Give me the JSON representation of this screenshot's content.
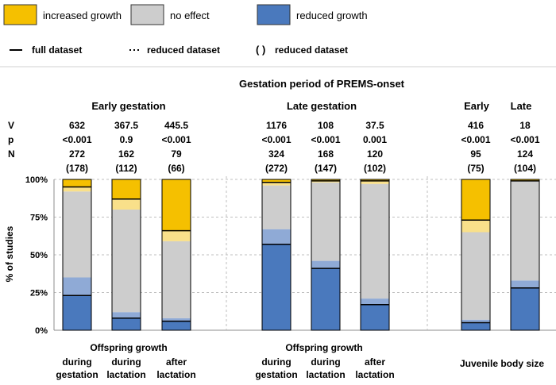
{
  "legend": {
    "colors": [
      {
        "label": "increased growth",
        "color": "#F5C000"
      },
      {
        "label": "no effect",
        "color": "#CDCDCD"
      },
      {
        "label": "reduced growth",
        "color": "#4A79BD"
      }
    ],
    "lines": [
      {
        "symbol": "—",
        "label": "full dataset"
      },
      {
        "symbol": "···",
        "label": "reduced dataset"
      },
      {
        "symbol": "( )",
        "label": "reduced dataset"
      }
    ]
  },
  "stat_labels": [
    "V",
    "p",
    "N"
  ],
  "colors": {
    "increased": "#F5C000",
    "increased_light": "#F9E08A",
    "noeffect": "#CDCDCD",
    "noeffect_light": "#E2E2E2",
    "reduced": "#4A79BD",
    "reduced_light": "#8FAAD6",
    "grid": "#BFBFBF"
  },
  "chart_data": {
    "type": "bar",
    "title": "Gestation period of PREMS-onset",
    "ylabel": "% of studies",
    "ylim": [
      0,
      100
    ],
    "yticks": [
      "0%",
      "25%",
      "50%",
      "75%",
      "100%"
    ],
    "grid": true,
    "groups": [
      {
        "label": "Early gestation",
        "sublabel": "Offspring growth",
        "categories": [
          "during\ngestation",
          "during\nlactation",
          "after\nlactation"
        ]
      },
      {
        "label": "Late gestation",
        "sublabel": "Offspring growth",
        "categories": [
          "during\ngestation",
          "during\nlactation",
          "after\nlactation"
        ]
      },
      {
        "label": "Early",
        "label2": "Late",
        "sublabel": "Juvenile body size",
        "categories": [
          "",
          ""
        ]
      }
    ],
    "bars": [
      {
        "group": 0,
        "V": "632",
        "p": "<0.001",
        "N": "272",
        "N_reduced": "(178)",
        "reduced_full": 23,
        "reduced_sub": 35,
        "increased_full": 5,
        "increased_sub": 8
      },
      {
        "group": 0,
        "V": "367.5",
        "p": "0.9",
        "N": "162",
        "N_reduced": "(112)",
        "reduced_full": 8,
        "reduced_sub": 12,
        "increased_full": 13,
        "increased_sub": 20
      },
      {
        "group": 0,
        "V": "445.5",
        "p": "<0.001",
        "N": "79",
        "N_reduced": "(66)",
        "reduced_full": 6,
        "reduced_sub": 8,
        "increased_full": 34,
        "increased_sub": 41
      },
      {
        "group": 1,
        "V": "1176",
        "p": "<0.001",
        "N": "324",
        "N_reduced": "(272)",
        "reduced_full": 57,
        "reduced_sub": 67,
        "increased_full": 2,
        "increased_sub": 4
      },
      {
        "group": 1,
        "V": "108",
        "p": "<0.001",
        "N": "168",
        "N_reduced": "(147)",
        "reduced_full": 41,
        "reduced_sub": 46,
        "increased_full": 1,
        "increased_sub": 2
      },
      {
        "group": 1,
        "V": "37.5",
        "p": "0.001",
        "N": "120",
        "N_reduced": "(102)",
        "reduced_full": 17,
        "reduced_sub": 21,
        "increased_full": 1,
        "increased_sub": 3
      },
      {
        "group": 2,
        "V": "416",
        "p": "<0.001",
        "N": "95",
        "N_reduced": "(75)",
        "reduced_full": 5,
        "reduced_sub": 7,
        "increased_full": 27,
        "increased_sub": 35
      },
      {
        "group": 2,
        "V": "18",
        "p": "<0.001",
        "N": "124",
        "N_reduced": "(104)",
        "reduced_full": 28,
        "reduced_sub": 33,
        "increased_full": 1,
        "increased_sub": 1
      }
    ]
  }
}
